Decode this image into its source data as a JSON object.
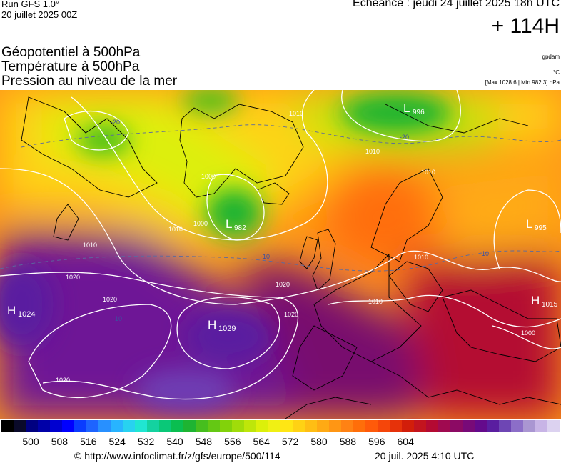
{
  "header": {
    "model": "Run GFS 1.0°",
    "run_date": "20 juillet 2025 00Z",
    "valid_time": "Echéance : jeudi 24 juillet 2025 18h UTC",
    "lead": "+ 114H"
  },
  "layers": {
    "geopotential": "Géopotentiel à 500hPa",
    "temperature": "Température à 500hPa",
    "pressure": "Pression au niveau de la mer"
  },
  "units": {
    "geopotential": "gpdam",
    "temperature": "°C",
    "pressure_range": "[Max 1028.6 | Min 982.3] hPa"
  },
  "map": {
    "pressure_centers": [
      {
        "type": "L",
        "value": "996"
      },
      {
        "type": "L",
        "value": "982"
      },
      {
        "type": "L",
        "value": "995"
      },
      {
        "type": "H",
        "value": "1024"
      },
      {
        "type": "H",
        "value": "1029"
      },
      {
        "type": "H",
        "value": "1015"
      }
    ],
    "isobar_labels": [
      "1010",
      "1000",
      "1020",
      "1010",
      "1010",
      "1020",
      "1020",
      "1020",
      "1020",
      "1010",
      "1010",
      "1010",
      "1000",
      "1010",
      "1000"
    ],
    "isotherm_labels": [
      "-20",
      "-20",
      "-10",
      "-10",
      "-10"
    ]
  },
  "colorbar": {
    "ticks": [
      "500",
      "508",
      "516",
      "524",
      "532",
      "540",
      "548",
      "556",
      "564",
      "572",
      "580",
      "588",
      "596",
      "604"
    ],
    "colors": [
      "#000000",
      "#0a0a2a",
      "#000080",
      "#0000a8",
      "#0000d0",
      "#0000ff",
      "#0a3cff",
      "#1e64ff",
      "#2890ff",
      "#28b4ff",
      "#28d2f0",
      "#20e6d2",
      "#14d2a0",
      "#0ac878",
      "#0abe50",
      "#1eb432",
      "#46be1e",
      "#64c814",
      "#82d20a",
      "#a0dc0a",
      "#bee60a",
      "#dcf00a",
      "#f0f014",
      "#ffe614",
      "#ffd214",
      "#ffbe14",
      "#ffaa14",
      "#ff9614",
      "#ff8214",
      "#ff6e0a",
      "#ff5a0a",
      "#f5460a",
      "#e6320a",
      "#d21e0a",
      "#c3141e",
      "#b40a32",
      "#a00a50",
      "#8c0a64",
      "#780a78",
      "#640a8c",
      "#5a1ea0",
      "#6e46b4",
      "#8c6ec8",
      "#aa96d2",
      "#c8b4e6",
      "#dcd2f0"
    ]
  },
  "footer": {
    "url": "© http://www.infoclimat.fr/z/gfs/europe/500/114",
    "generated": "20 juil. 2025  4:10 UTC"
  }
}
